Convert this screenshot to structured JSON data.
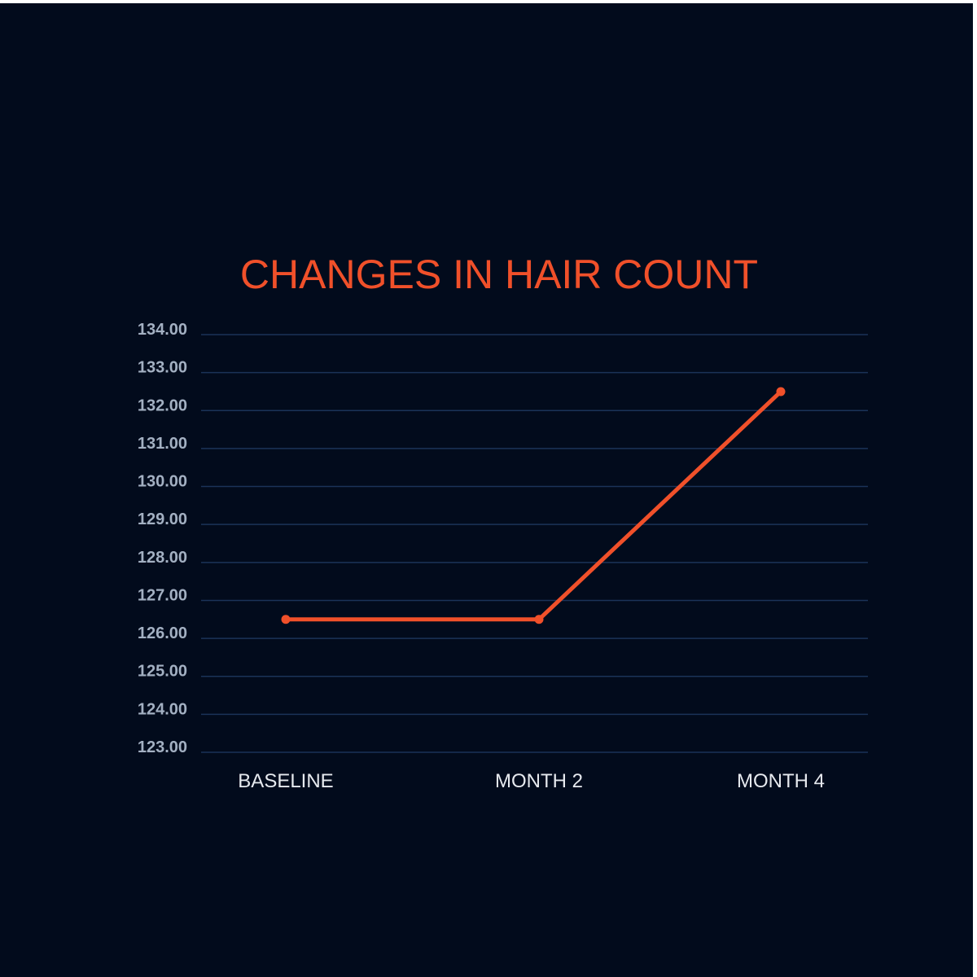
{
  "chart_data": {
    "type": "line",
    "title": "CHANGES IN HAIR COUNT",
    "xlabel": "",
    "ylabel": "",
    "categories": [
      "BASELINE",
      "MONTH 2",
      "MONTH 4"
    ],
    "values": [
      126.5,
      126.5,
      132.5
    ],
    "ylim": [
      123,
      134
    ],
    "yticks": [
      "123.00",
      "124.00",
      "125.00",
      "126.00",
      "127.00",
      "128.00",
      "129.00",
      "130.00",
      "131.00",
      "132.00",
      "133.00",
      "134.00"
    ],
    "grid": true,
    "colors": {
      "background": "#020b1c",
      "line": "#f0502a",
      "grid": "#1b3358",
      "tick": "#a3b0c2"
    }
  }
}
